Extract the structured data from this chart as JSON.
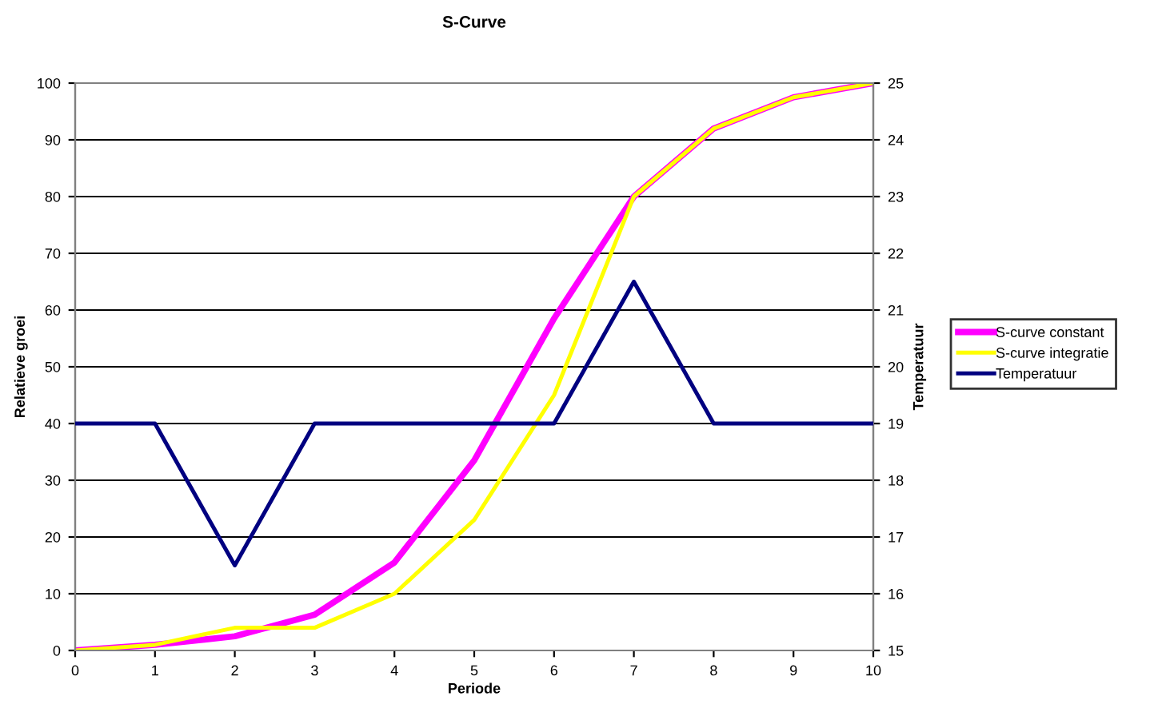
{
  "chart_data": {
    "type": "line",
    "title": "S-Curve",
    "xlabel": "Periode",
    "ylabel": "Relatieve groei",
    "y2label": "Temperatuur",
    "x": [
      0,
      1,
      2,
      3,
      4,
      5,
      6,
      7,
      8,
      9,
      10
    ],
    "series": [
      {
        "name": "S-curve constant",
        "color": "#ff00ff",
        "values": [
          0,
          1,
          2.5,
          6.3,
          15.5,
          33.5,
          58.5,
          80,
          92,
          97.5,
          100
        ]
      },
      {
        "name": "S-curve integratie",
        "color": "#ffff00",
        "values": [
          0,
          1,
          4,
          4,
          10,
          23,
          45,
          80,
          92,
          97.5,
          100
        ]
      },
      {
        "name": "Temperatuur",
        "color": "#000080",
        "axis": "y2",
        "values": [
          19,
          19,
          16.5,
          19,
          19,
          19,
          19,
          21.5,
          19,
          19,
          19
        ]
      }
    ],
    "xlim": [
      0,
      10
    ],
    "xticks": [
      0,
      1,
      2,
      3,
      4,
      5,
      6,
      7,
      8,
      9,
      10
    ],
    "ylim": [
      0,
      100
    ],
    "yticks": [
      0,
      10,
      20,
      30,
      40,
      50,
      60,
      70,
      80,
      90,
      100
    ],
    "y2lim": [
      15,
      25
    ],
    "y2ticks": [
      15,
      16,
      17,
      18,
      19,
      20,
      21,
      22,
      23,
      24,
      25
    ],
    "grid": "y",
    "legend": "right",
    "marker": "none",
    "line_style": "solid"
  }
}
